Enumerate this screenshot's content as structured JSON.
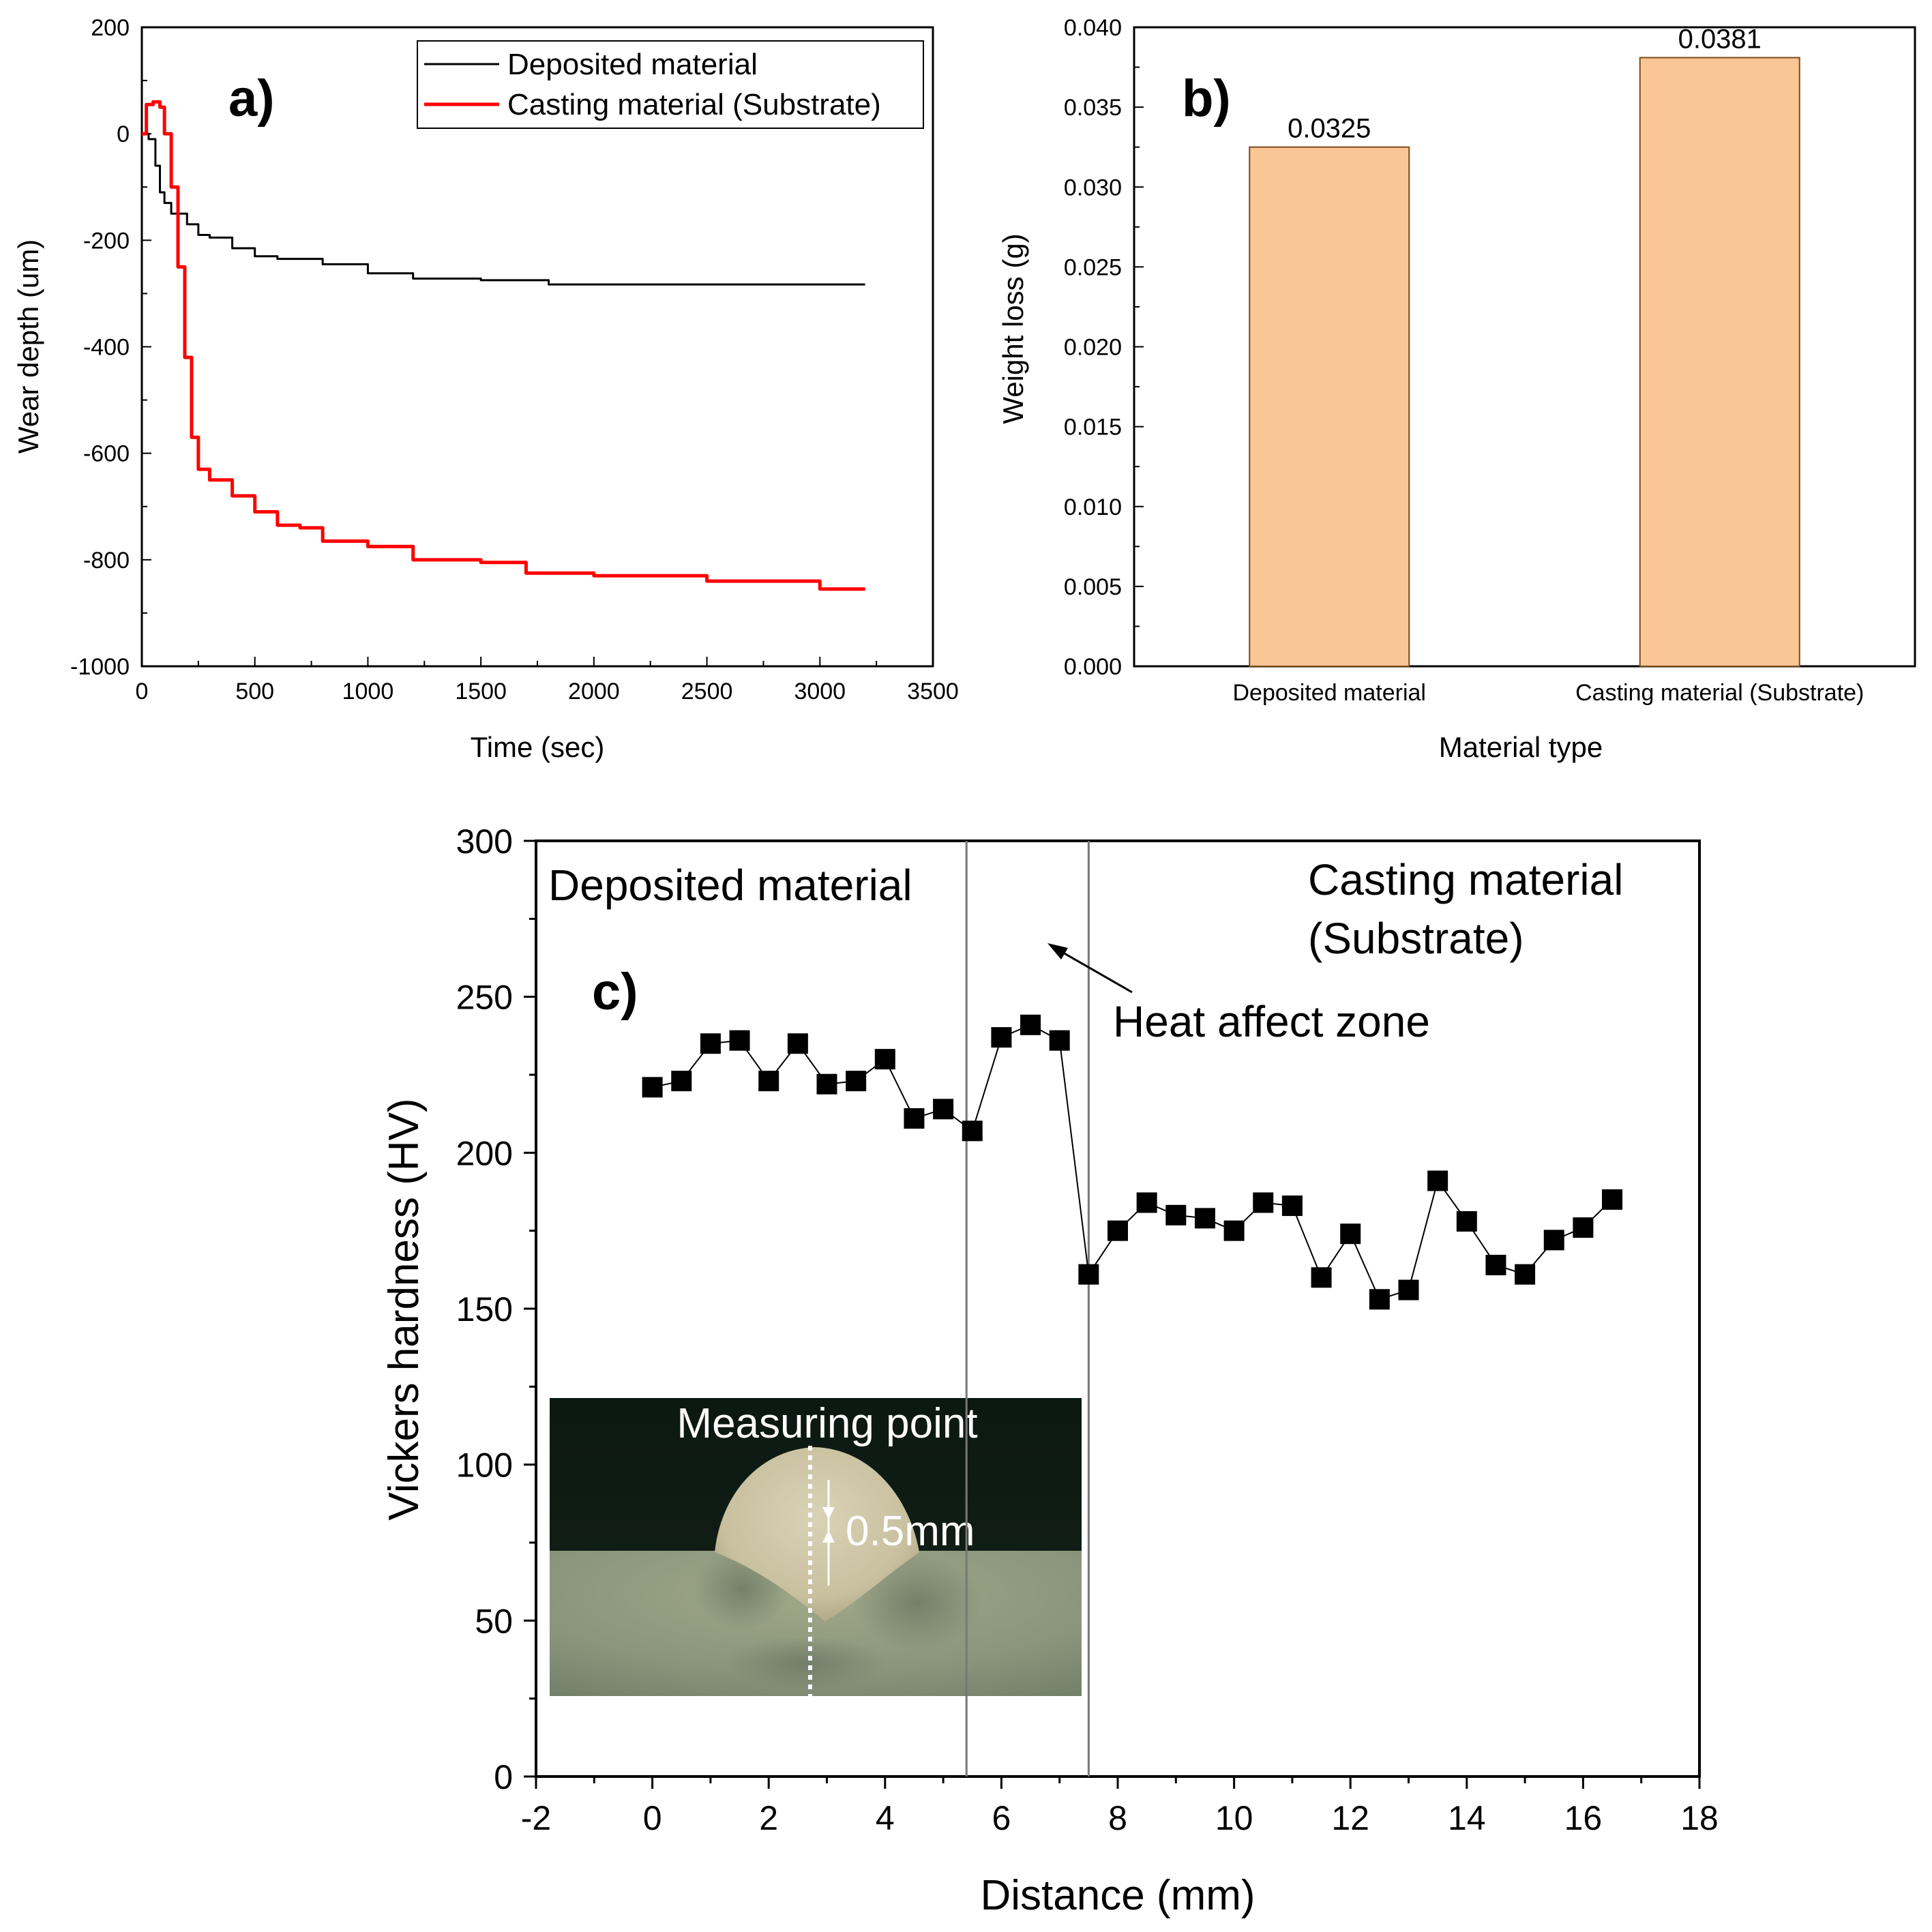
{
  "chart_data": [
    {
      "panel": "a)",
      "type": "line",
      "xlabel": "Time (sec)",
      "ylabel": "Wear depth (um)",
      "xlim": [
        0,
        3500
      ],
      "ylim": [
        -1000,
        200
      ],
      "xticks": [
        "0",
        "500",
        "1000",
        "1500",
        "2000",
        "2500",
        "3000",
        "3500"
      ],
      "yticks": [
        "-1000",
        "-800",
        "-600",
        "-400",
        "-200",
        "0",
        "200"
      ],
      "legend_position": "top-right",
      "series": [
        {
          "name": "Deposited material",
          "color": "#000000",
          "x": [
            0,
            30,
            60,
            80,
            100,
            130,
            150,
            200,
            250,
            300,
            400,
            500,
            600,
            800,
            1000,
            1200,
            1500,
            1800,
            2000,
            2500,
            3000,
            3200
          ],
          "y": [
            0,
            -10,
            -60,
            -110,
            -130,
            -150,
            -150,
            -170,
            -190,
            -195,
            -215,
            -230,
            -235,
            -245,
            -262,
            -272,
            -275,
            -283,
            -283,
            -283,
            -283,
            -283
          ]
        },
        {
          "name": "Casting material (Substrate)",
          "color": "#ff0000",
          "x": [
            0,
            20,
            50,
            80,
            100,
            130,
            160,
            190,
            220,
            250,
            300,
            400,
            500,
            600,
            700,
            800,
            1000,
            1200,
            1500,
            1700,
            2000,
            2500,
            3000,
            3200
          ],
          "y": [
            0,
            55,
            60,
            50,
            0,
            -100,
            -250,
            -420,
            -570,
            -630,
            -650,
            -680,
            -710,
            -735,
            -740,
            -765,
            -775,
            -800,
            -805,
            -825,
            -830,
            -840,
            -855,
            -855
          ]
        }
      ]
    },
    {
      "panel": "b)",
      "type": "bar",
      "xlabel": "Material type",
      "ylabel": "Weight loss (g)",
      "ylim": [
        0,
        0.04
      ],
      "yticks": [
        "0.000",
        "0.005",
        "0.010",
        "0.015",
        "0.020",
        "0.025",
        "0.030",
        "0.035",
        "0.040"
      ],
      "categories": [
        "Deposited material",
        "Casting material (Substrate)"
      ],
      "values": [
        0.0325,
        0.0381
      ],
      "value_labels": [
        "0.0325",
        "0.0381"
      ],
      "bar_color": "#fac696"
    },
    {
      "panel": "c)",
      "type": "line",
      "xlabel": "Distance (mm)",
      "ylabel": "Vickers hardness (HV)",
      "xlim": [
        -2,
        18
      ],
      "ylim": [
        0,
        300
      ],
      "xticks": [
        "-2",
        "0",
        "2",
        "4",
        "6",
        "8",
        "10",
        "12",
        "14",
        "16",
        "18"
      ],
      "yticks": [
        "0",
        "50",
        "100",
        "150",
        "200",
        "250",
        "300"
      ],
      "vlines": [
        5.4,
        7.5
      ],
      "annotations": {
        "left_region": "Deposited material",
        "right_region_line1": "Casting material",
        "right_region_line2": "(Substrate)",
        "haz": "Heat affect zone"
      },
      "inset": {
        "title": "Measuring point",
        "dimension": "0.5mm"
      },
      "series": [
        {
          "marker": "square",
          "x": [
            0,
            0.5,
            1,
            1.5,
            2,
            2.5,
            3,
            3.5,
            4,
            4.5,
            5,
            5.5,
            6,
            6.5,
            7,
            7.5,
            8,
            8.5,
            9,
            9.5,
            10,
            10.5,
            11,
            11.5,
            12,
            12.5,
            13,
            13.5,
            14,
            14.5,
            15,
            15.5,
            16,
            16.5
          ],
          "y": [
            221,
            223,
            235,
            236,
            223,
            235,
            222,
            223,
            230,
            211,
            214,
            207,
            237,
            241,
            236,
            161,
            175,
            184,
            180,
            179,
            175,
            184,
            183,
            160,
            174,
            153,
            156,
            191,
            178,
            164,
            161,
            172,
            176,
            185
          ]
        }
      ]
    }
  ]
}
